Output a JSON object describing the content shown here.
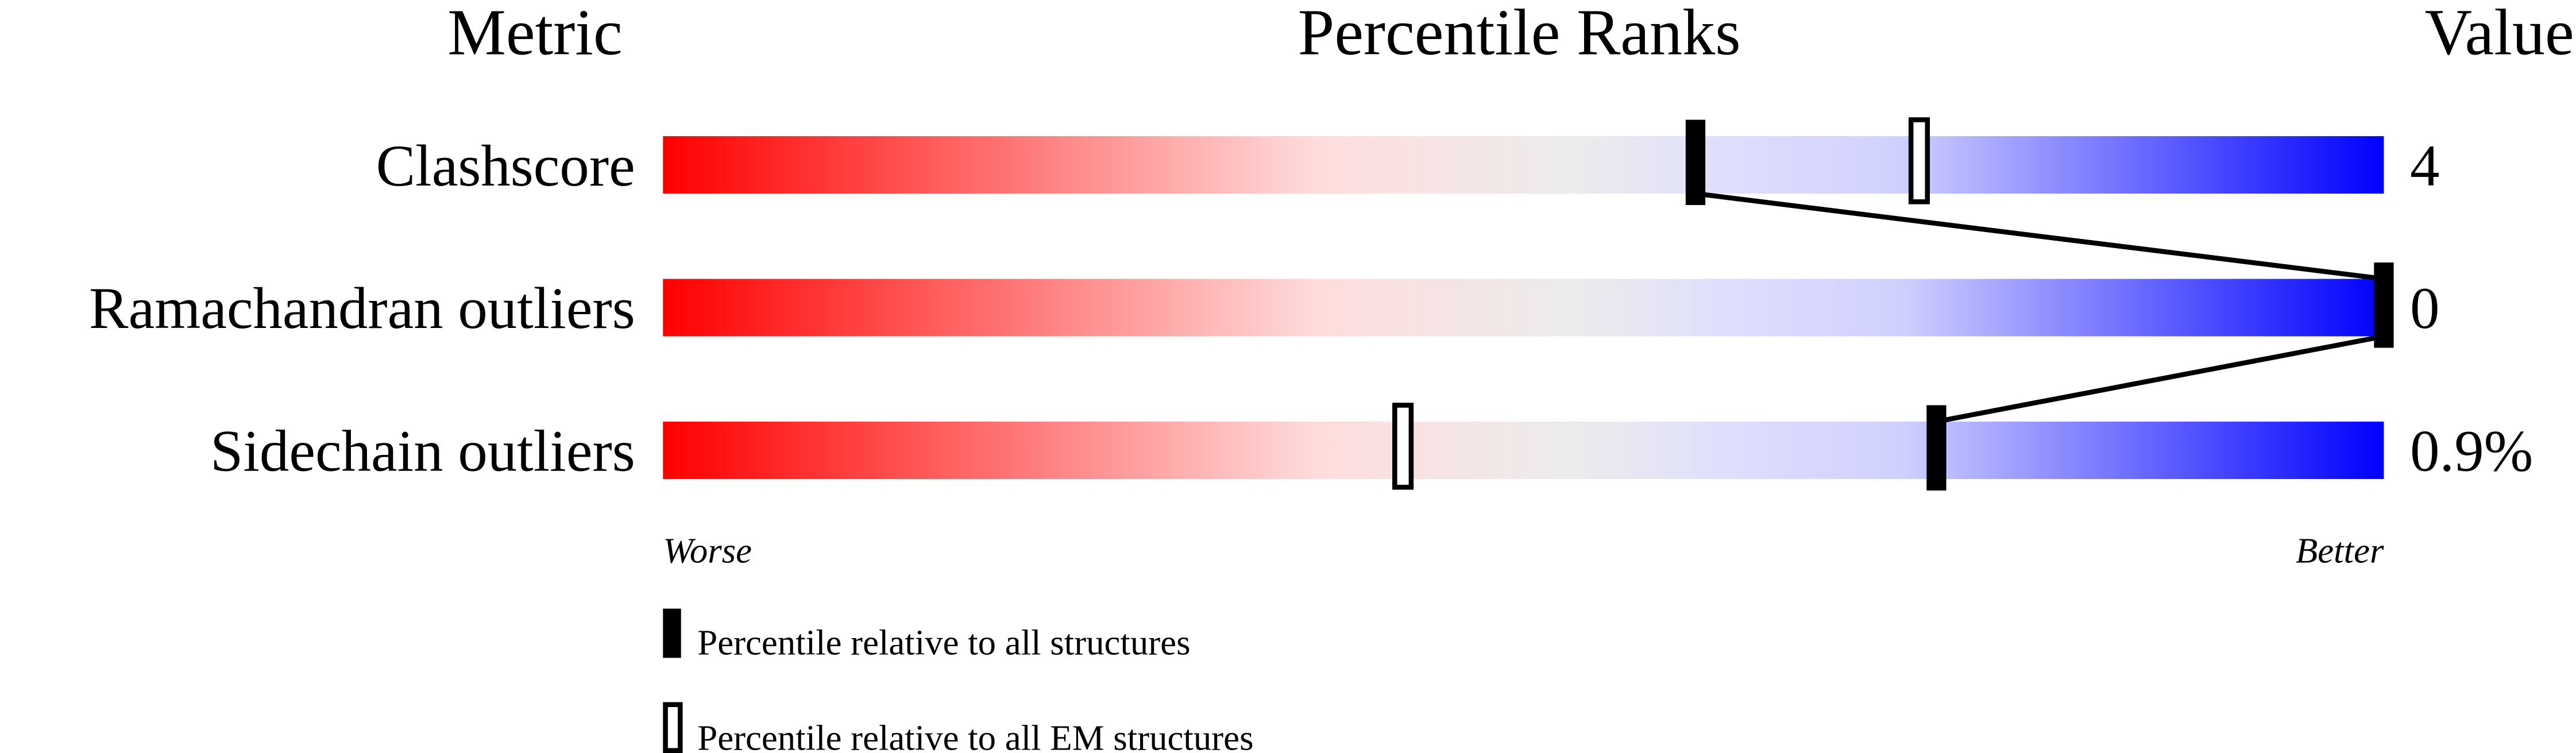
{
  "chart_data": {
    "type": "percentile-bar",
    "headers": {
      "metric": "Metric",
      "ranks": "Percentile Ranks",
      "value": "Value"
    },
    "xlim": [
      0,
      100
    ],
    "gradient_colors": [
      "#ff0000",
      "#ffdddd",
      "#eeeeee",
      "#ddddff",
      "#0000ff"
    ],
    "rows": [
      {
        "metric": "Clashscore",
        "value": "4",
        "percentile_all": 60,
        "percentile_em": 73
      },
      {
        "metric": "Ramachandran outliers",
        "value": "0",
        "percentile_all": 100,
        "percentile_em": null
      },
      {
        "metric": "Sidechain outliers",
        "value": "0.9%",
        "percentile_all": 74,
        "percentile_em": 43
      }
    ],
    "axis_labels": {
      "worse": "Worse",
      "better": "Better"
    },
    "legend": [
      {
        "marker": "filled",
        "label": "Percentile relative to all structures"
      },
      {
        "marker": "open",
        "label": "Percentile relative to all EM structures"
      }
    ]
  }
}
